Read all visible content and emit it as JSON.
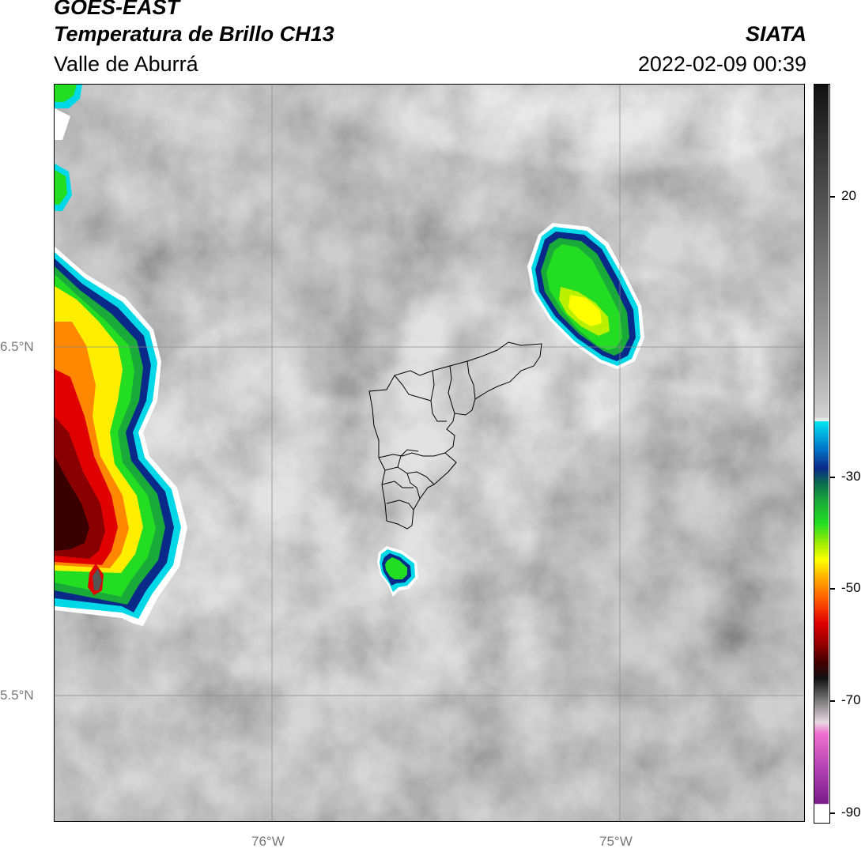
{
  "header": {
    "satellite": "GOES-EAST",
    "product": "Temperatura de Brillo CH13",
    "region": "Valle de Aburrá",
    "organization": "SIATA",
    "timestamp": "2022-02-09 00:39"
  },
  "axes": {
    "lat_labels": [
      "6.5°N",
      "5.5°N"
    ],
    "lon_labels": [
      "76°W",
      "75°W"
    ]
  },
  "colorbar": {
    "tick_labels": [
      "20",
      "-30",
      "-50",
      "-70",
      "-90"
    ],
    "colors": {
      "cyan": "#00d8e8",
      "blue": "#0a2a8a",
      "green": "#22dd22",
      "yellow": "#ffff00",
      "orange": "#ff8800",
      "red": "#e00000",
      "darkred": "#500000",
      "magenta": "#e060c0",
      "purple": "#7a1a8a"
    }
  }
}
